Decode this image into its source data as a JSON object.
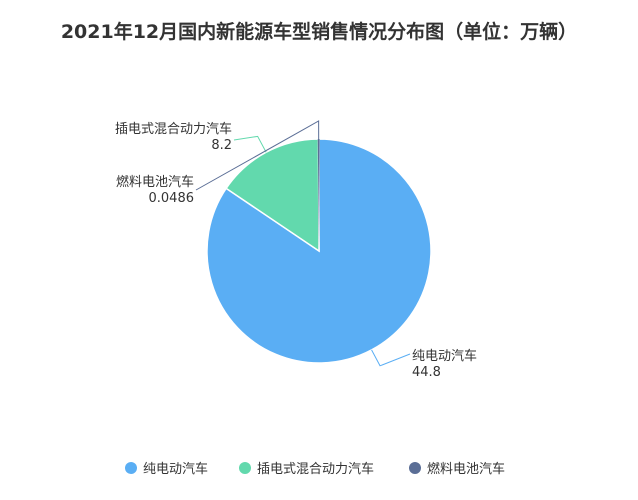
{
  "chart_data": {
    "type": "pie",
    "title": "2021年12月国内新能源车型销售情况分布图（单位：万辆）",
    "categories": [
      "纯电动汽车",
      "插电式混合动力汽车",
      "燃料电池汽车"
    ],
    "values": [
      44.8,
      8.2,
      0.0486
    ],
    "value_labels": [
      "44.8",
      "8.2",
      "0.0486"
    ],
    "colors": [
      "#5AAEF4",
      "#62D9AD",
      "#5B6E96"
    ],
    "legend": {
      "placement": "bottom",
      "items": [
        "纯电动汽车",
        "插电式混合动力汽车",
        "燃料电池汽车"
      ]
    }
  }
}
